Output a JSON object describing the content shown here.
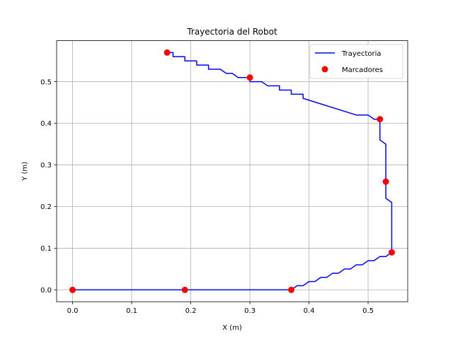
{
  "chart_data": {
    "type": "line",
    "title": "Trayectoria del Robot",
    "xlabel": "X (m)",
    "ylabel": "Y (m)",
    "xlim": [
      -0.027,
      0.567
    ],
    "ylim": [
      -0.0285,
      0.5985
    ],
    "xticks": [
      0.0,
      0.1,
      0.2,
      0.3,
      0.4,
      0.5
    ],
    "xtick_labels": [
      "0.0",
      "0.1",
      "0.2",
      "0.3",
      "0.4",
      "0.5"
    ],
    "yticks": [
      0.0,
      0.1,
      0.2,
      0.3,
      0.4,
      0.5
    ],
    "ytick_labels": [
      "0.0",
      "0.1",
      "0.2",
      "0.3",
      "0.4",
      "0.5"
    ],
    "grid": true,
    "legend_position": "upper right",
    "series": [
      {
        "name": "Trayectoria",
        "kind": "line",
        "color": "#0000ff",
        "points": [
          [
            0.0,
            0.0
          ],
          [
            0.19,
            0.0
          ],
          [
            0.37,
            0.0
          ],
          [
            0.375,
            0.005
          ],
          [
            0.38,
            0.01
          ],
          [
            0.39,
            0.01
          ],
          [
            0.4,
            0.02
          ],
          [
            0.41,
            0.02
          ],
          [
            0.42,
            0.03
          ],
          [
            0.43,
            0.03
          ],
          [
            0.44,
            0.04
          ],
          [
            0.45,
            0.04
          ],
          [
            0.46,
            0.05
          ],
          [
            0.47,
            0.05
          ],
          [
            0.48,
            0.06
          ],
          [
            0.49,
            0.06
          ],
          [
            0.5,
            0.07
          ],
          [
            0.51,
            0.07
          ],
          [
            0.52,
            0.08
          ],
          [
            0.53,
            0.08
          ],
          [
            0.54,
            0.09
          ],
          [
            0.54,
            0.21
          ],
          [
            0.53,
            0.22
          ],
          [
            0.53,
            0.26
          ],
          [
            0.53,
            0.35
          ],
          [
            0.52,
            0.36
          ],
          [
            0.52,
            0.41
          ],
          [
            0.51,
            0.41
          ],
          [
            0.5,
            0.42
          ],
          [
            0.48,
            0.42
          ],
          [
            0.39,
            0.46
          ],
          [
            0.39,
            0.47
          ],
          [
            0.37,
            0.47
          ],
          [
            0.37,
            0.48
          ],
          [
            0.35,
            0.48
          ],
          [
            0.35,
            0.49
          ],
          [
            0.33,
            0.49
          ],
          [
            0.32,
            0.5
          ],
          [
            0.3,
            0.5
          ],
          [
            0.3,
            0.51
          ],
          [
            0.28,
            0.51
          ],
          [
            0.27,
            0.52
          ],
          [
            0.26,
            0.52
          ],
          [
            0.25,
            0.53
          ],
          [
            0.23,
            0.53
          ],
          [
            0.23,
            0.54
          ],
          [
            0.21,
            0.54
          ],
          [
            0.21,
            0.55
          ],
          [
            0.19,
            0.55
          ],
          [
            0.19,
            0.56
          ],
          [
            0.17,
            0.56
          ],
          [
            0.17,
            0.57
          ],
          [
            0.16,
            0.57
          ]
        ]
      },
      {
        "name": "Marcadores",
        "kind": "markers",
        "color": "#ff0000",
        "points": [
          [
            0.0,
            0.0
          ],
          [
            0.19,
            0.0
          ],
          [
            0.37,
            0.0
          ],
          [
            0.54,
            0.09
          ],
          [
            0.53,
            0.26
          ],
          [
            0.52,
            0.41
          ],
          [
            0.3,
            0.51
          ],
          [
            0.16,
            0.57
          ]
        ]
      }
    ]
  }
}
